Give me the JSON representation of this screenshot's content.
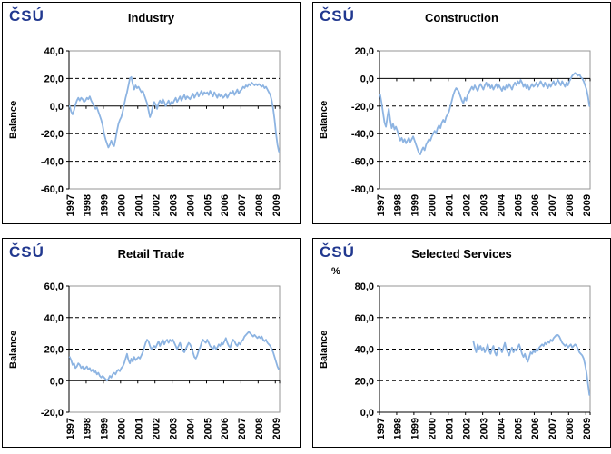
{
  "logo_text": "ČSÚ",
  "colors": {
    "line": "#8DB4E2",
    "logo": "#21388F",
    "frame": "#969696",
    "axis": "#000000"
  },
  "x_labels": [
    "1997",
    "1998",
    "1999",
    "2000",
    "2001",
    "2002",
    "2003",
    "2004",
    "2005",
    "2006",
    "2007",
    "2008",
    "2009"
  ],
  "total_months": 147,
  "chart_data": [
    {
      "id": "industry",
      "type": "line",
      "title": "Industry",
      "ylabel": "Balance",
      "unit_label": "",
      "ylim": [
        -60,
        40
      ],
      "ystep": 20,
      "ytick_labels": [
        "40,0",
        "20,0",
        "0,0",
        "-20,0",
        "-40,0",
        "-60,0"
      ],
      "grid_at": [
        20,
        -20,
        -40
      ],
      "axis_at": 0,
      "x_range": [
        "1997",
        "2009"
      ],
      "frequency": "monthly",
      "start_month_index": 0,
      "values": [
        0,
        -4,
        -6,
        -3,
        1,
        4,
        6,
        4,
        6,
        5,
        3,
        4,
        6,
        5,
        7,
        4,
        2,
        0,
        -2,
        -1,
        -4,
        -7,
        -10,
        -14,
        -20,
        -24,
        -27,
        -30,
        -28,
        -25,
        -28,
        -29,
        -24,
        -18,
        -13,
        -10,
        -8,
        -4,
        1,
        6,
        10,
        15,
        20,
        21,
        16,
        12,
        15,
        13,
        14,
        12,
        10,
        11,
        8,
        5,
        2,
        -3,
        -8,
        -5,
        0,
        3,
        1,
        -2,
        2,
        4,
        2,
        5,
        3,
        0,
        2,
        4,
        1,
        3,
        2,
        4,
        6,
        3,
        5,
        7,
        4,
        6,
        8,
        5,
        7,
        6,
        5,
        7,
        9,
        6,
        8,
        10,
        7,
        9,
        11,
        8,
        10,
        9,
        10,
        8,
        11,
        9,
        7,
        10,
        8,
        6,
        9,
        7,
        8,
        6,
        7,
        9,
        6,
        8,
        10,
        9,
        11,
        8,
        10,
        12,
        9,
        11,
        12,
        14,
        13,
        15,
        14,
        16,
        15,
        17,
        16,
        15,
        16,
        15,
        16,
        15,
        14,
        15,
        13,
        14,
        12,
        10,
        8,
        4,
        -2,
        -10,
        -20,
        -28,
        -33
      ]
    },
    {
      "id": "construction",
      "type": "line",
      "title": "Construction",
      "ylabel": "Balance",
      "unit_label": "",
      "ylim": [
        -80,
        20
      ],
      "ystep": 20,
      "ytick_labels": [
        "20,0",
        "0,0",
        "-20,0",
        "-40,0",
        "-60,0",
        "-80,0"
      ],
      "grid_at": [
        -20,
        -40,
        -60
      ],
      "axis_at": 0,
      "x_range": [
        "1997",
        "2009"
      ],
      "frequency": "monthly",
      "start_month_index": 0,
      "values": [
        -12,
        -18,
        -25,
        -32,
        -35,
        -28,
        -22,
        -30,
        -36,
        -33,
        -37,
        -35,
        -38,
        -42,
        -45,
        -43,
        -46,
        -44,
        -47,
        -45,
        -43,
        -46,
        -44,
        -42,
        -45,
        -48,
        -51,
        -54,
        -55,
        -52,
        -50,
        -52,
        -48,
        -46,
        -44,
        -45,
        -42,
        -40,
        -38,
        -40,
        -36,
        -34,
        -36,
        -32,
        -30,
        -32,
        -28,
        -26,
        -24,
        -20,
        -16,
        -12,
        -9,
        -7,
        -8,
        -10,
        -13,
        -16,
        -18,
        -14,
        -16,
        -12,
        -10,
        -8,
        -6,
        -8,
        -5,
        -7,
        -9,
        -6,
        -4,
        -6,
        -8,
        -5,
        -3,
        -6,
        -4,
        -7,
        -5,
        -8,
        -6,
        -4,
        -7,
        -5,
        -7,
        -9,
        -6,
        -8,
        -5,
        -7,
        -4,
        -6,
        -8,
        -5,
        -3,
        -5,
        -2,
        -4,
        -1,
        -3,
        -6,
        -4,
        -7,
        -5,
        -8,
        -6,
        -4,
        -6,
        -5,
        -3,
        -6,
        -4,
        -2,
        -4,
        -6,
        -3,
        -5,
        -7,
        -4,
        -6,
        -4,
        -2,
        -5,
        -3,
        -1,
        -3,
        -5,
        -2,
        -4,
        -6,
        -3,
        -5,
        -2,
        0,
        2,
        3,
        4,
        3,
        2,
        3,
        1,
        0,
        -2,
        -5,
        -8,
        -13,
        -20
      ]
    },
    {
      "id": "retail-trade",
      "type": "line",
      "title": "Retail Trade",
      "ylabel": "Balance",
      "unit_label": "",
      "ylim": [
        -20,
        60
      ],
      "ystep": 20,
      "ytick_labels": [
        "60,0",
        "40,0",
        "20,0",
        "0,0",
        "-20,0"
      ],
      "grid_at": [
        40,
        20
      ],
      "axis_at": 0,
      "x_range": [
        "1997",
        "2009"
      ],
      "frequency": "monthly",
      "start_month_index": 0,
      "values": [
        15,
        13,
        10,
        11,
        8,
        9,
        11,
        10,
        8,
        9,
        7,
        8,
        9,
        7,
        8,
        6,
        7,
        5,
        6,
        4,
        5,
        3,
        2,
        3,
        2,
        1,
        0,
        1,
        3,
        2,
        4,
        5,
        4,
        6,
        7,
        6,
        8,
        9,
        11,
        14,
        17,
        13,
        11,
        14,
        12,
        15,
        13,
        14,
        15,
        14,
        16,
        18,
        21,
        24,
        26,
        25,
        22,
        20,
        21,
        22,
        21,
        23,
        25,
        22,
        24,
        26,
        23,
        25,
        26,
        24,
        26,
        25,
        26,
        24,
        22,
        20,
        22,
        24,
        21,
        19,
        18,
        20,
        22,
        24,
        23,
        21,
        18,
        15,
        14,
        16,
        19,
        21,
        24,
        26,
        25,
        24,
        26,
        24,
        22,
        21,
        20,
        22,
        20,
        21,
        23,
        22,
        24,
        23,
        25,
        27,
        24,
        22,
        21,
        24,
        26,
        25,
        23,
        22,
        24,
        23,
        25,
        26,
        28,
        29,
        30,
        31,
        30,
        29,
        28,
        29,
        28,
        27,
        28,
        27,
        28,
        26,
        25,
        26,
        24,
        23,
        22,
        20,
        18,
        15,
        12,
        9,
        7
      ]
    },
    {
      "id": "selected-services",
      "type": "line",
      "title": "Selected Services",
      "ylabel": "Balance",
      "unit_label": "%",
      "ylim": [
        0,
        80
      ],
      "ystep": 20,
      "ytick_labels": [
        "80,0",
        "60,0",
        "40,0",
        "20,0",
        "0,0"
      ],
      "grid_at": [
        60,
        40,
        20
      ],
      "axis_at": 0,
      "x_range": [
        "2002",
        "2009"
      ],
      "frequency": "monthly",
      "start_month_index": 65,
      "values": [
        45,
        41,
        38,
        43,
        40,
        42,
        39,
        41,
        38,
        40,
        43,
        39,
        37,
        40,
        42,
        38,
        36,
        39,
        41,
        40,
        38,
        41,
        44,
        40,
        38,
        36,
        39,
        41,
        38,
        40,
        39,
        41,
        43,
        40,
        37,
        35,
        37,
        34,
        32,
        35,
        38,
        37,
        39,
        38,
        40,
        39,
        41,
        42,
        43,
        42,
        44,
        43,
        45,
        44,
        46,
        45,
        47,
        48,
        49,
        49,
        48,
        46,
        44,
        43,
        42,
        43,
        41,
        42,
        43,
        41,
        42,
        43,
        42,
        40,
        38,
        37,
        36,
        34,
        30,
        25,
        18,
        11
      ]
    }
  ]
}
